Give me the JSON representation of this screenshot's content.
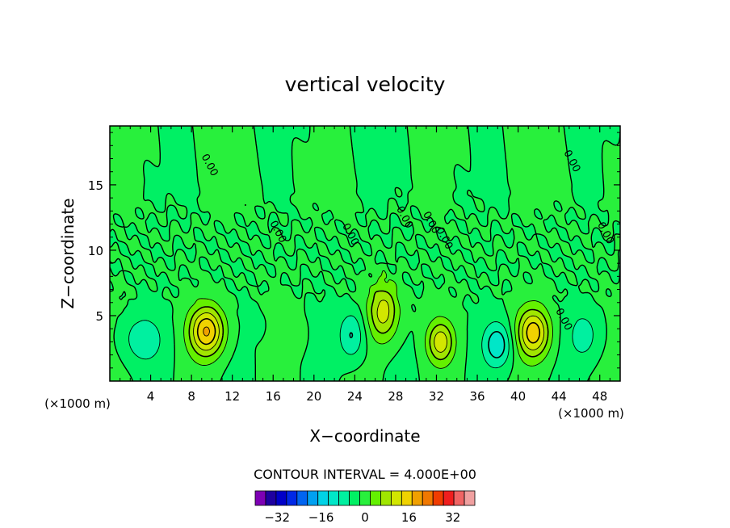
{
  "chart_data": {
    "type": "heatmap",
    "title": "vertical velocity",
    "xlabel": "X−coordinate",
    "ylabel": "Z−coordinate",
    "x_unit_label": "(×1000 m)",
    "xlim": [
      0,
      50
    ],
    "ylim": [
      0,
      19.5
    ],
    "x_ticks": [
      4,
      8,
      12,
      16,
      20,
      24,
      28,
      32,
      36,
      40,
      44,
      48
    ],
    "y_ticks": [
      5,
      10,
      15
    ],
    "contour_interval_text": "CONTOUR INTERVAL = 4.000E+00",
    "zero_contour_label": "0.00",
    "zero_label_positions": [
      {
        "x": 9.5,
        "z": 16.4
      },
      {
        "x": 16.2,
        "z": 11.3
      },
      {
        "x": 23.3,
        "z": 11.1
      },
      {
        "x": 28.6,
        "z": 12.4
      },
      {
        "x": 31.2,
        "z": 12.0
      },
      {
        "x": 32.5,
        "z": 10.8
      },
      {
        "x": 45.0,
        "z": 16.7
      },
      {
        "x": 48.3,
        "z": 11.2
      },
      {
        "x": 44.2,
        "z": 4.6
      }
    ],
    "colorbar": {
      "levels": [
        -40,
        -36,
        -32,
        -28,
        -24,
        -20,
        -16,
        -12,
        -8,
        -4,
        0,
        4,
        8,
        12,
        16,
        20,
        24,
        28,
        32,
        36,
        40
      ],
      "colors": [
        "#7d00b4",
        "#1e00a0",
        "#0000c8",
        "#0028e6",
        "#0064f0",
        "#00a0f0",
        "#00d2e6",
        "#00e6c8",
        "#00f0a0",
        "#00f064",
        "#28f03c",
        "#64f000",
        "#a0e600",
        "#d2e600",
        "#f0d200",
        "#f0a000",
        "#f07800",
        "#f03c00",
        "#f01e1e",
        "#f06464",
        "#f0a0a0"
      ],
      "tick_values": [
        -32,
        -16,
        0,
        16,
        32
      ]
    },
    "features": [
      {
        "x": 9.5,
        "z": 3.8,
        "amp": 20,
        "sx": 1.7,
        "sz": 1.9
      },
      {
        "x": 26.8,
        "z": 5.3,
        "amp": 14,
        "sx": 1.5,
        "sz": 2.2
      },
      {
        "x": 32.4,
        "z": 3.0,
        "amp": 14,
        "sx": 1.3,
        "sz": 1.6
      },
      {
        "x": 41.5,
        "z": 3.7,
        "amp": 18,
        "sx": 1.6,
        "sz": 1.9
      },
      {
        "x": 3.2,
        "z": 3.2,
        "amp": -7,
        "sx": 2.0,
        "sz": 1.8
      },
      {
        "x": 23.7,
        "z": 3.5,
        "amp": -9,
        "sx": 1.3,
        "sz": 1.9
      },
      {
        "x": 38.0,
        "z": 2.8,
        "amp": -11,
        "sx": 1.4,
        "sz": 1.7
      },
      {
        "x": 46.5,
        "z": 3.5,
        "amp": -6,
        "sx": 1.6,
        "sz": 2.0
      },
      {
        "x": 14.3,
        "z": 4.2,
        "amp": -4,
        "sx": 0.7,
        "sz": 0.8
      },
      {
        "x": 18.2,
        "z": 3.5,
        "amp": 3,
        "sx": 0.9,
        "sz": 1.2
      }
    ],
    "grid": false
  }
}
